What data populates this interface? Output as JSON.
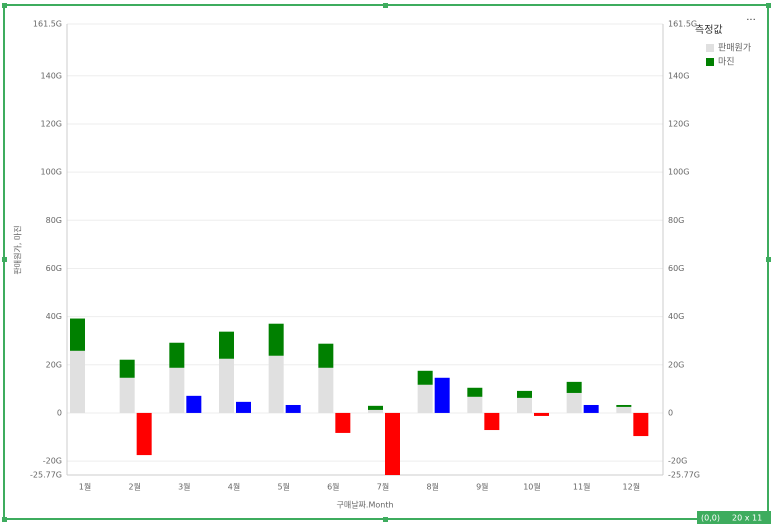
{
  "chart_data": {
    "type": "stacked-bar-delta",
    "y_label": "판매원가, 마진",
    "x_label": "구매날짜.Month",
    "legend_title": "측정값",
    "categories": [
      "1월",
      "2월",
      "3월",
      "4월",
      "5월",
      "6월",
      "7월",
      "8월",
      "9월",
      "10월",
      "11월",
      "12월"
    ],
    "series": [
      {
        "name": "판매원가",
        "color": "#e0e0e0",
        "values": [
          25.8,
          14.6,
          18.75,
          22.5,
          23.75,
          18.75,
          1.25,
          11.7,
          6.7,
          6.25,
          8.3,
          2.5
        ]
      },
      {
        "name": "마진",
        "color": "#008000",
        "values": [
          13.4,
          7.5,
          10.4,
          11.25,
          13.3,
          10,
          1.7,
          5.8,
          3.75,
          2.9,
          4.6,
          0.8
        ]
      }
    ],
    "delta_values": [
      null,
      -17.5,
      7.1,
      4.6,
      3.3,
      -8.3,
      -26,
      14.6,
      -7.1,
      -1.25,
      3.3,
      -9.6
    ],
    "positive_color": "#0000ff",
    "negative_color": "#ff0000",
    "ylim": [
      -25.77,
      161.5
    ],
    "yticks": [
      {
        "value": -25.77,
        "label": "-25.77G"
      },
      {
        "value": -20,
        "label": "-20G"
      },
      0,
      {
        "value": 20,
        "label": "20G"
      },
      {
        "value": 40,
        "label": "40G"
      },
      {
        "value": 60,
        "label": "60G"
      },
      {
        "value": 80,
        "label": "80G"
      },
      {
        "value": 100,
        "label": "100G"
      },
      {
        "value": 120,
        "label": "120G"
      },
      {
        "value": 140,
        "label": "140G"
      },
      {
        "value": 161.5,
        "label": "161.5G"
      }
    ],
    "grid": true
  },
  "ui": {
    "badge_position": "(0,0)",
    "badge_size": "20 x 11",
    "menu": "···"
  }
}
